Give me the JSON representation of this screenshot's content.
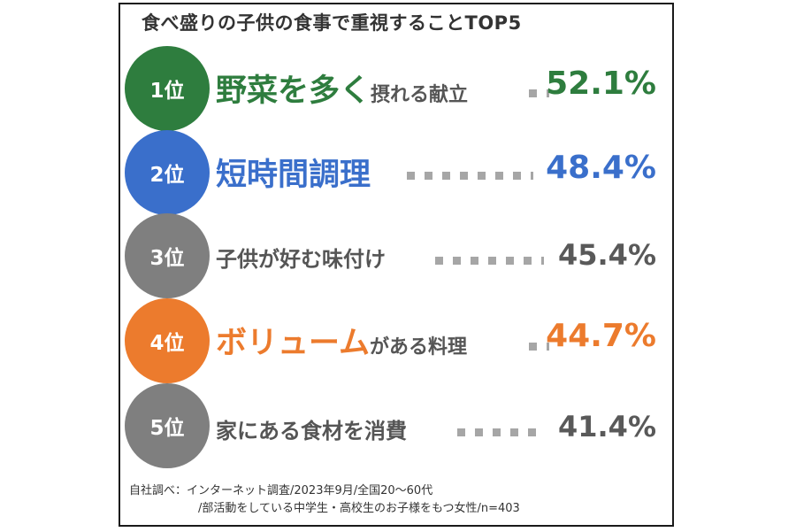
{
  "title": "食べ盛りの子供の食事で重視することTOP5",
  "chart_data": {
    "type": "bar",
    "categories": [
      "野菜を多く摂れる献立",
      "短時間調理",
      "子供が好む味付け",
      "ボリュームがある料理",
      "家にある食材を消費"
    ],
    "values": [
      52.1,
      48.4,
      45.4,
      44.7,
      41.4
    ],
    "unit": "%"
  },
  "ranks": [
    {
      "rank": "1位",
      "main": "野菜を多く",
      "sub": "摂れる献立",
      "value": "52.1%",
      "color": "#2e7d3e"
    },
    {
      "rank": "2位",
      "main": "短時間調理",
      "sub": "",
      "value": "48.4%",
      "color": "#3a6fcb"
    },
    {
      "rank": "3位",
      "main": "",
      "sub": "子供が好む味付け",
      "value": "45.4%",
      "color": "#7f7f7f"
    },
    {
      "rank": "4位",
      "main": "ボリューム",
      "sub": "がある料理",
      "value": "44.7%",
      "color": "#ec7b2d"
    },
    {
      "rank": "5位",
      "main": "",
      "sub": "家にある食材を消費",
      "value": "41.4%",
      "color": "#7f7f7f"
    }
  ],
  "source": {
    "line1": "自社調べ：インターネット調査/2023年9月/全国20～60代",
    "line2": "/部活動をしている中学生・高校生のお子様をもつ女性/n=403"
  }
}
